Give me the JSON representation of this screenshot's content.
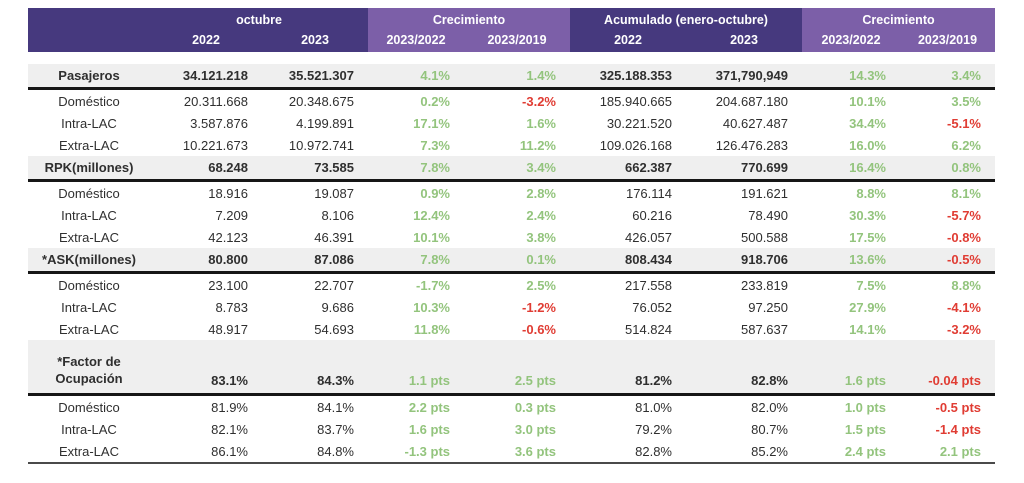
{
  "colors": {
    "header_dark": "#46397E",
    "header_light": "#7C5FA8",
    "positive_green": "#93C47D",
    "negative_red": "#E03C33",
    "section_row_bg": "#EFEFEF",
    "body_text": "#2F2F2F"
  },
  "chart_data": {
    "type": "table",
    "column_groups": [
      {
        "label": "octubre",
        "tone": "dark",
        "columns": [
          "2022",
          "2023"
        ]
      },
      {
        "label": "Crecimiento",
        "tone": "light",
        "columns": [
          "2023/2022",
          "2023/2019"
        ]
      },
      {
        "label": "Acumulado (enero-octubre)",
        "tone": "dark",
        "columns": [
          "2022",
          "2023"
        ]
      },
      {
        "label": "Crecimiento",
        "tone": "light",
        "columns": [
          "2023/2022",
          "2023/2019"
        ]
      }
    ],
    "sections": [
      {
        "header_row": {
          "label": "Pasajeros",
          "cells": [
            [
              "34.121.218",
              "val"
            ],
            [
              "35.521.307",
              "val"
            ],
            [
              "4.1%",
              "pos"
            ],
            [
              "1.4%",
              "pos"
            ],
            [
              "325.188.353",
              "val"
            ],
            [
              "371,790,949",
              "val"
            ],
            [
              "14.3%",
              "pos"
            ],
            [
              "3.4%",
              "pos"
            ]
          ]
        },
        "rows": [
          {
            "label": "Doméstico",
            "cells": [
              [
                "20.311.668",
                "val"
              ],
              [
                "20.348.675",
                "val"
              ],
              [
                "0.2%",
                "pos"
              ],
              [
                "-3.2%",
                "neg"
              ],
              [
                "185.940.665",
                "val"
              ],
              [
                "204.687.180",
                "val"
              ],
              [
                "10.1%",
                "pos"
              ],
              [
                "3.5%",
                "pos"
              ]
            ]
          },
          {
            "label": "Intra-LAC",
            "cells": [
              [
                "3.587.876",
                "val"
              ],
              [
                "4.199.891",
                "val"
              ],
              [
                "17.1%",
                "pos"
              ],
              [
                "1.6%",
                "pos"
              ],
              [
                "30.221.520",
                "val"
              ],
              [
                "40.627.487",
                "val"
              ],
              [
                "34.4%",
                "pos"
              ],
              [
                "-5.1%",
                "neg"
              ]
            ]
          },
          {
            "label": "Extra-LAC",
            "cells": [
              [
                "10.221.673",
                "val"
              ],
              [
                "10.972.741",
                "val"
              ],
              [
                "7.3%",
                "pos"
              ],
              [
                "11.2%",
                "pos"
              ],
              [
                "109.026.168",
                "val"
              ],
              [
                "126.476.283",
                "val"
              ],
              [
                "16.0%",
                "pos"
              ],
              [
                "6.2%",
                "pos"
              ]
            ]
          }
        ]
      },
      {
        "header_row": {
          "label": "RPK(millones)",
          "cells": [
            [
              "68.248",
              "val"
            ],
            [
              "73.585",
              "val"
            ],
            [
              "7.8%",
              "pos"
            ],
            [
              "3.4%",
              "pos"
            ],
            [
              "662.387",
              "val"
            ],
            [
              "770.699",
              "val"
            ],
            [
              "16.4%",
              "pos"
            ],
            [
              "0.8%",
              "pos"
            ]
          ]
        },
        "rows": [
          {
            "label": "Doméstico",
            "cells": [
              [
                "18.916",
                "val"
              ],
              [
                "19.087",
                "val"
              ],
              [
                "0.9%",
                "pos"
              ],
              [
                "2.8%",
                "pos"
              ],
              [
                "176.114",
                "val"
              ],
              [
                "191.621",
                "val"
              ],
              [
                "8.8%",
                "pos"
              ],
              [
                "8.1%",
                "pos"
              ]
            ]
          },
          {
            "label": "Intra-LAC",
            "cells": [
              [
                "7.209",
                "val"
              ],
              [
                "8.106",
                "val"
              ],
              [
                "12.4%",
                "pos"
              ],
              [
                "2.4%",
                "pos"
              ],
              [
                "60.216",
                "val"
              ],
              [
                "78.490",
                "val"
              ],
              [
                "30.3%",
                "pos"
              ],
              [
                "-5.7%",
                "neg"
              ]
            ]
          },
          {
            "label": "Extra-LAC",
            "cells": [
              [
                "42.123",
                "val"
              ],
              [
                "46.391",
                "val"
              ],
              [
                "10.1%",
                "pos"
              ],
              [
                "3.8%",
                "pos"
              ],
              [
                "426.057",
                "val"
              ],
              [
                "500.588",
                "val"
              ],
              [
                "17.5%",
                "pos"
              ],
              [
                "-0.8%",
                "neg"
              ]
            ]
          }
        ]
      },
      {
        "header_row": {
          "label": "*ASK(millones)",
          "cells": [
            [
              "80.800",
              "val"
            ],
            [
              "87.086",
              "val"
            ],
            [
              "7.8%",
              "pos"
            ],
            [
              "0.1%",
              "pos"
            ],
            [
              "808.434",
              "val"
            ],
            [
              "918.706",
              "val"
            ],
            [
              "13.6%",
              "pos"
            ],
            [
              "-0.5%",
              "neg"
            ]
          ]
        },
        "rows": [
          {
            "label": "Doméstico",
            "cells": [
              [
                "23.100",
                "val"
              ],
              [
                "22.707",
                "val"
              ],
              [
                "-1.7%",
                "pos"
              ],
              [
                "2.5%",
                "pos"
              ],
              [
                "217.558",
                "val"
              ],
              [
                "233.819",
                "val"
              ],
              [
                "7.5%",
                "pos"
              ],
              [
                "8.8%",
                "pos"
              ]
            ]
          },
          {
            "label": "Intra-LAC",
            "cells": [
              [
                "8.783",
                "val"
              ],
              [
                "9.686",
                "val"
              ],
              [
                "10.3%",
                "pos"
              ],
              [
                "-1.2%",
                "neg"
              ],
              [
                "76.052",
                "val"
              ],
              [
                "97.250",
                "val"
              ],
              [
                "27.9%",
                "pos"
              ],
              [
                "-4.1%",
                "neg"
              ]
            ]
          },
          {
            "label": "Extra-LAC",
            "cells": [
              [
                "48.917",
                "val"
              ],
              [
                "54.693",
                "val"
              ],
              [
                "11.8%",
                "pos"
              ],
              [
                "-0.6%",
                "neg"
              ],
              [
                "514.824",
                "val"
              ],
              [
                "587.637",
                "val"
              ],
              [
                "14.1%",
                "pos"
              ],
              [
                "-3.2%",
                "neg"
              ]
            ]
          }
        ]
      },
      {
        "header_row": {
          "label": "*Factor de\nOcupación",
          "cells": [
            [
              "83.1%",
              "val"
            ],
            [
              "84.3%",
              "val"
            ],
            [
              "1.1 pts",
              "pos"
            ],
            [
              "2.5 pts",
              "pos"
            ],
            [
              "81.2%",
              "val"
            ],
            [
              "82.8%",
              "val"
            ],
            [
              "1.6 pts",
              "pos"
            ],
            [
              "-0.04 pts",
              "neg"
            ]
          ]
        },
        "rows": [
          {
            "label": "Doméstico",
            "cells": [
              [
                "81.9%",
                "val"
              ],
              [
                "84.1%",
                "val"
              ],
              [
                "2.2 pts",
                "pos"
              ],
              [
                "0.3 pts",
                "pos"
              ],
              [
                "81.0%",
                "val"
              ],
              [
                "82.0%",
                "val"
              ],
              [
                "1.0 pts",
                "pos"
              ],
              [
                "-0.5 pts",
                "neg"
              ]
            ]
          },
          {
            "label": "Intra-LAC",
            "cells": [
              [
                "82.1%",
                "val"
              ],
              [
                "83.7%",
                "val"
              ],
              [
                "1.6 pts",
                "pos"
              ],
              [
                "3.0 pts",
                "pos"
              ],
              [
                "79.2%",
                "val"
              ],
              [
                "80.7%",
                "val"
              ],
              [
                "1.5 pts",
                "pos"
              ],
              [
                "-1.4 pts",
                "neg"
              ]
            ]
          },
          {
            "label": "Extra-LAC",
            "cells": [
              [
                "86.1%",
                "val"
              ],
              [
                "84.8%",
                "val"
              ],
              [
                "-1.3 pts",
                "pos"
              ],
              [
                "3.6 pts",
                "pos"
              ],
              [
                "82.8%",
                "val"
              ],
              [
                "85.2%",
                "val"
              ],
              [
                "2.4 pts",
                "pos"
              ],
              [
                "2.1 pts",
                "pos"
              ]
            ]
          }
        ]
      }
    ]
  }
}
